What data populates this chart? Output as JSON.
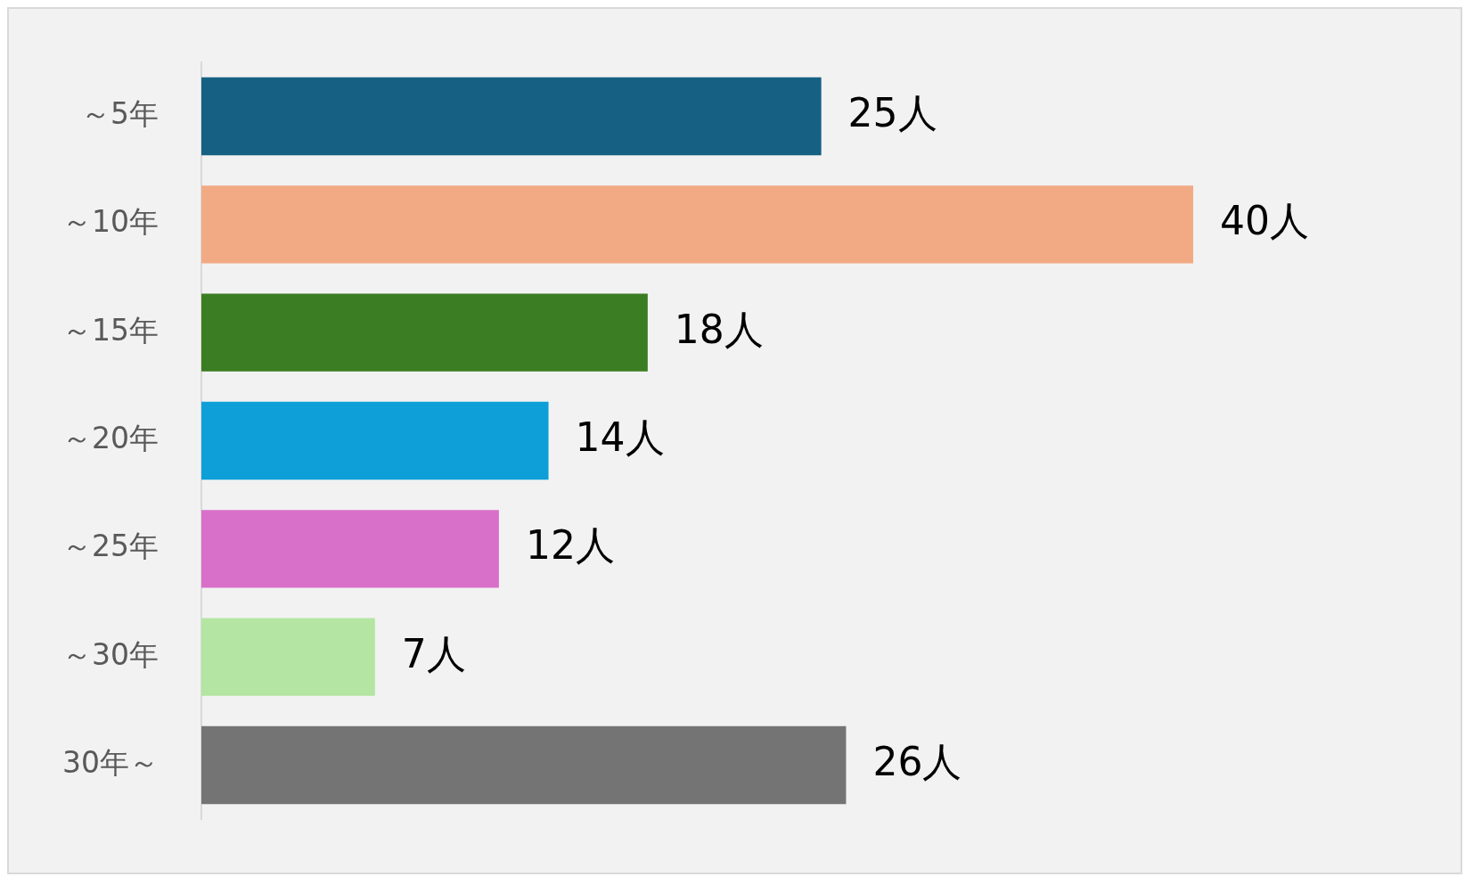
{
  "chart_data": {
    "type": "bar",
    "orientation": "horizontal",
    "categories": [
      "～5年",
      "～10年",
      "～15年",
      "～20年",
      "～25年",
      "～30年",
      "30年～"
    ],
    "values": [
      25,
      40,
      18,
      14,
      12,
      7,
      26
    ],
    "colors": [
      "#166083",
      "#f2aa84",
      "#3a7d22",
      "#0e9fd8",
      "#d870c9",
      "#b4e5a2",
      "#747474"
    ],
    "value_labels": [
      "25人",
      "40人",
      "18人",
      "14人",
      "12人",
      "7人",
      "26人"
    ],
    "legend": false
  }
}
